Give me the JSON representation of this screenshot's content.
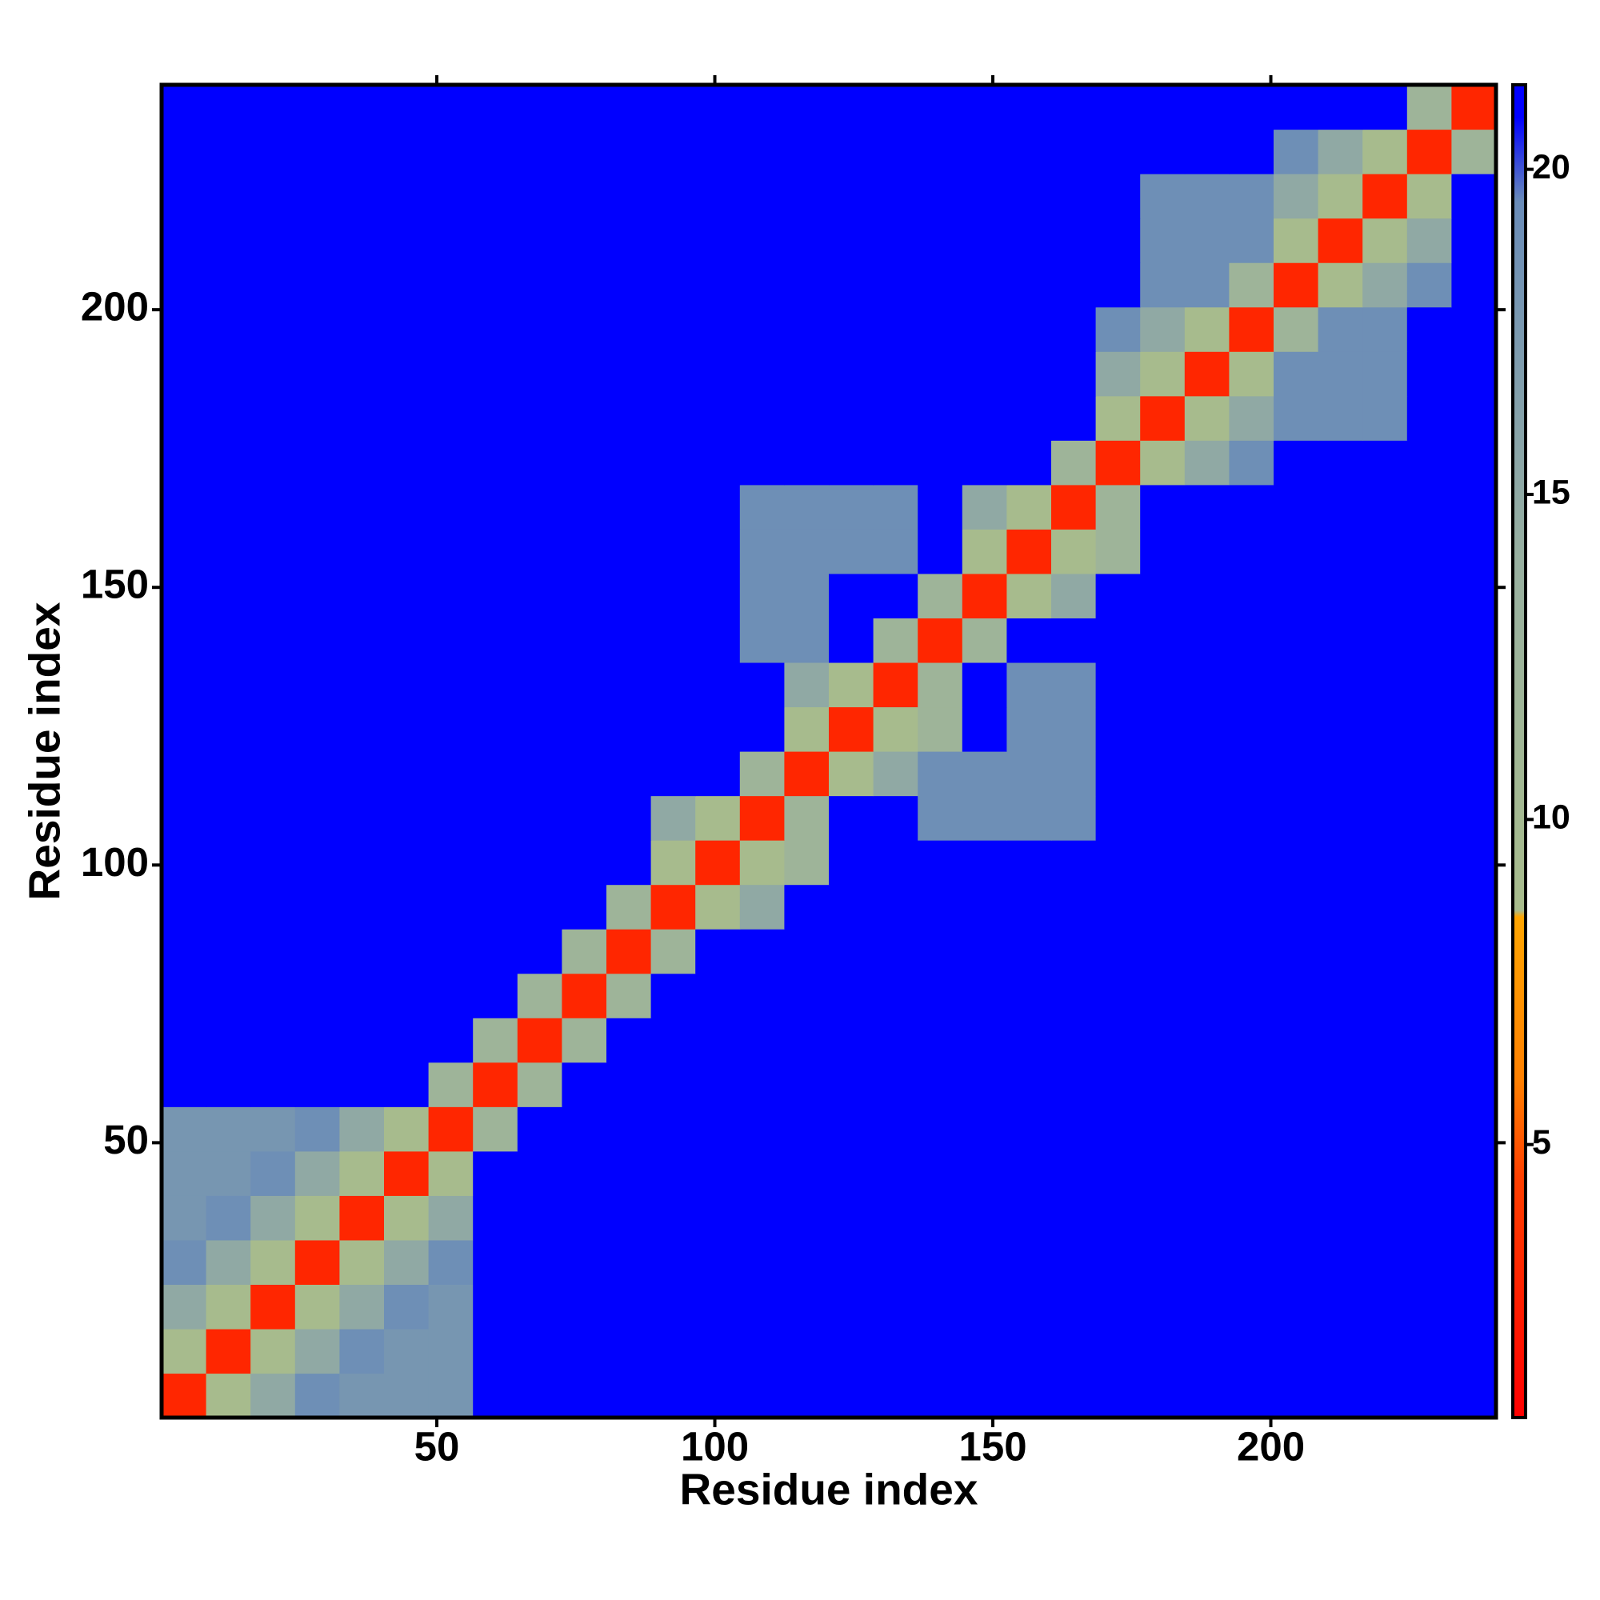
{
  "chart_data": {
    "type": "heatmap",
    "xlabel": "Residue index",
    "ylabel": "Residue index",
    "xbins": [
      0.5,
      8.5,
      16.5,
      24.5,
      32.5,
      40.5,
      48.5,
      56.5,
      64.5,
      72.5,
      80.5,
      88.5,
      96.5,
      104.5,
      112.5,
      120.5,
      128.5,
      136.5,
      144.5,
      152.5,
      160.5,
      168.5,
      176.5,
      184.5,
      192.5,
      200.5,
      208.5,
      216.5,
      224.5,
      232.5,
      240.5
    ],
    "ybins": [
      0.5,
      8.5,
      16.5,
      24.5,
      32.5,
      40.5,
      48.5,
      56.5,
      64.5,
      72.5,
      80.5,
      88.5,
      96.5,
      104.5,
      112.5,
      120.5,
      128.5,
      136.5,
      144.5,
      152.5,
      160.5,
      168.5,
      176.5,
      184.5,
      192.5,
      200.5,
      208.5,
      216.5,
      224.5,
      232.5,
      240.5
    ],
    "values": [
      [
        3,
        9,
        15,
        19,
        18,
        18,
        18,
        21,
        21,
        21,
        21,
        21,
        21,
        21,
        21,
        21,
        21,
        21,
        21,
        21,
        21,
        21,
        21,
        21,
        21,
        21,
        21,
        21,
        21,
        21
      ],
      [
        9,
        3,
        9,
        15,
        19,
        18,
        18,
        21,
        21,
        21,
        21,
        21,
        21,
        21,
        21,
        21,
        21,
        21,
        21,
        21,
        21,
        21,
        21,
        21,
        21,
        21,
        21,
        21,
        21,
        21
      ],
      [
        15,
        9,
        3,
        9,
        15,
        19,
        18,
        21,
        21,
        21,
        21,
        21,
        21,
        21,
        21,
        21,
        21,
        21,
        21,
        21,
        21,
        21,
        21,
        21,
        21,
        21,
        21,
        21,
        21,
        21
      ],
      [
        19,
        15,
        9,
        3,
        9,
        15,
        19,
        21,
        21,
        21,
        21,
        21,
        21,
        21,
        21,
        21,
        21,
        21,
        21,
        21,
        21,
        21,
        21,
        21,
        21,
        21,
        21,
        21,
        21,
        21
      ],
      [
        18,
        19,
        15,
        9,
        3,
        9,
        15,
        21,
        21,
        21,
        21,
        21,
        21,
        21,
        21,
        21,
        21,
        21,
        21,
        21,
        21,
        21,
        21,
        21,
        21,
        21,
        21,
        21,
        21,
        21
      ],
      [
        18,
        18,
        19,
        15,
        9,
        3,
        9,
        21,
        21,
        21,
        21,
        21,
        21,
        21,
        21,
        21,
        21,
        21,
        21,
        21,
        21,
        21,
        21,
        21,
        21,
        21,
        21,
        21,
        21,
        21
      ],
      [
        18,
        18,
        18,
        19,
        15,
        9,
        3,
        12,
        21,
        21,
        21,
        21,
        21,
        21,
        21,
        21,
        21,
        21,
        21,
        21,
        21,
        21,
        21,
        21,
        21,
        21,
        21,
        21,
        21,
        21
      ],
      [
        21,
        21,
        21,
        21,
        21,
        21,
        12,
        3,
        12,
        21,
        21,
        21,
        21,
        21,
        21,
        21,
        21,
        21,
        21,
        21,
        21,
        21,
        21,
        21,
        21,
        21,
        21,
        21,
        21,
        21
      ],
      [
        21,
        21,
        21,
        21,
        21,
        21,
        21,
        12,
        3,
        12,
        21,
        21,
        21,
        21,
        21,
        21,
        21,
        21,
        21,
        21,
        21,
        21,
        21,
        21,
        21,
        21,
        21,
        21,
        21,
        21
      ],
      [
        21,
        21,
        21,
        21,
        21,
        21,
        21,
        21,
        12,
        3,
        12,
        21,
        21,
        21,
        21,
        21,
        21,
        21,
        21,
        21,
        21,
        21,
        21,
        21,
        21,
        21,
        21,
        21,
        21,
        21
      ],
      [
        21,
        21,
        21,
        21,
        21,
        21,
        21,
        21,
        21,
        12,
        3,
        12,
        21,
        21,
        21,
        21,
        21,
        21,
        21,
        21,
        21,
        21,
        21,
        21,
        21,
        21,
        21,
        21,
        21,
        21
      ],
      [
        21,
        21,
        21,
        21,
        21,
        21,
        21,
        21,
        21,
        21,
        12,
        3,
        9,
        15,
        21,
        21,
        21,
        21,
        21,
        21,
        21,
        21,
        21,
        21,
        21,
        21,
        21,
        21,
        21,
        21
      ],
      [
        21,
        21,
        21,
        21,
        21,
        21,
        21,
        21,
        21,
        21,
        21,
        9,
        3,
        9,
        12,
        21,
        21,
        21,
        21,
        21,
        21,
        21,
        21,
        21,
        21,
        21,
        21,
        21,
        21,
        21
      ],
      [
        21,
        21,
        21,
        21,
        21,
        21,
        21,
        21,
        21,
        21,
        21,
        15,
        9,
        3,
        12,
        21,
        21,
        19,
        19,
        19,
        19,
        21,
        21,
        21,
        21,
        21,
        21,
        21,
        21,
        21
      ],
      [
        21,
        21,
        21,
        21,
        21,
        21,
        21,
        21,
        21,
        21,
        21,
        21,
        21,
        12,
        3,
        9,
        15,
        19,
        19,
        19,
        19,
        21,
        21,
        21,
        21,
        21,
        21,
        21,
        21,
        21
      ],
      [
        21,
        21,
        21,
        21,
        21,
        21,
        21,
        21,
        21,
        21,
        21,
        21,
        21,
        21,
        9,
        3,
        9,
        12,
        21,
        19,
        19,
        21,
        21,
        21,
        21,
        21,
        21,
        21,
        21,
        21
      ],
      [
        21,
        21,
        21,
        21,
        21,
        21,
        21,
        21,
        21,
        21,
        21,
        21,
        21,
        21,
        15,
        9,
        3,
        12,
        21,
        19,
        19,
        21,
        21,
        21,
        21,
        21,
        21,
        21,
        21,
        21
      ],
      [
        21,
        21,
        21,
        21,
        21,
        21,
        21,
        21,
        21,
        21,
        21,
        21,
        21,
        19,
        19,
        21,
        12,
        3,
        12,
        21,
        21,
        21,
        21,
        21,
        21,
        21,
        21,
        21,
        21,
        21
      ],
      [
        21,
        21,
        21,
        21,
        21,
        21,
        21,
        21,
        21,
        21,
        21,
        21,
        21,
        19,
        19,
        21,
        21,
        12,
        3,
        9,
        15,
        21,
        21,
        21,
        21,
        21,
        21,
        21,
        21,
        21
      ],
      [
        21,
        21,
        21,
        21,
        21,
        21,
        21,
        21,
        21,
        21,
        21,
        21,
        21,
        19,
        19,
        19,
        19,
        21,
        9,
        3,
        9,
        12,
        21,
        21,
        21,
        21,
        21,
        21,
        21,
        21
      ],
      [
        21,
        21,
        21,
        21,
        21,
        21,
        21,
        21,
        21,
        21,
        21,
        21,
        21,
        19,
        19,
        19,
        19,
        21,
        15,
        9,
        3,
        12,
        21,
        21,
        21,
        21,
        21,
        21,
        21,
        21
      ],
      [
        21,
        21,
        21,
        21,
        21,
        21,
        21,
        21,
        21,
        21,
        21,
        21,
        21,
        21,
        21,
        21,
        21,
        21,
        21,
        21,
        12,
        3,
        9,
        15,
        19,
        21,
        21,
        21,
        21,
        21
      ],
      [
        21,
        21,
        21,
        21,
        21,
        21,
        21,
        21,
        21,
        21,
        21,
        21,
        21,
        21,
        21,
        21,
        21,
        21,
        21,
        21,
        21,
        9,
        3,
        9,
        15,
        19,
        19,
        19,
        21,
        21
      ],
      [
        21,
        21,
        21,
        21,
        21,
        21,
        21,
        21,
        21,
        21,
        21,
        21,
        21,
        21,
        21,
        21,
        21,
        21,
        21,
        21,
        21,
        15,
        9,
        3,
        9,
        19,
        19,
        19,
        21,
        21
      ],
      [
        21,
        21,
        21,
        21,
        21,
        21,
        21,
        21,
        21,
        21,
        21,
        21,
        21,
        21,
        21,
        21,
        21,
        21,
        21,
        21,
        21,
        19,
        15,
        9,
        3,
        12,
        19,
        19,
        21,
        21
      ],
      [
        21,
        21,
        21,
        21,
        21,
        21,
        21,
        21,
        21,
        21,
        21,
        21,
        21,
        21,
        21,
        21,
        21,
        21,
        21,
        21,
        21,
        21,
        19,
        19,
        12,
        3,
        9,
        15,
        19,
        21
      ],
      [
        21,
        21,
        21,
        21,
        21,
        21,
        21,
        21,
        21,
        21,
        21,
        21,
        21,
        21,
        21,
        21,
        21,
        21,
        21,
        21,
        21,
        21,
        19,
        19,
        19,
        9,
        3,
        9,
        15,
        21
      ],
      [
        21,
        21,
        21,
        21,
        21,
        21,
        21,
        21,
        21,
        21,
        21,
        21,
        21,
        21,
        21,
        21,
        21,
        21,
        21,
        21,
        21,
        21,
        19,
        19,
        19,
        15,
        9,
        3,
        9,
        21
      ],
      [
        21,
        21,
        21,
        21,
        21,
        21,
        21,
        21,
        21,
        21,
        21,
        21,
        21,
        21,
        21,
        21,
        21,
        21,
        21,
        21,
        21,
        21,
        21,
        21,
        21,
        19,
        15,
        9,
        3,
        12
      ],
      [
        21,
        21,
        21,
        21,
        21,
        21,
        21,
        21,
        21,
        21,
        21,
        21,
        21,
        21,
        21,
        21,
        21,
        21,
        21,
        21,
        21,
        21,
        21,
        21,
        21,
        21,
        21,
        21,
        12,
        3
      ]
    ],
    "xlim": [
      0.5,
      240.5
    ],
    "ylim": [
      0.5,
      240.5
    ],
    "xticks": [
      50,
      100,
      150,
      200
    ],
    "yticks": [
      50,
      100,
      150,
      200
    ],
    "clim": [
      0.8,
      21.3
    ],
    "cticks": [
      5,
      10,
      15,
      20
    ],
    "colorscale": [
      [
        0.8,
        "#ff0000"
      ],
      [
        4.5,
        "#ff4000"
      ],
      [
        6,
        "#ff8000"
      ],
      [
        8.5,
        "#ffa500"
      ],
      [
        8.6,
        "#a8bc8c"
      ],
      [
        14,
        "#98b0a0"
      ],
      [
        19.5,
        "#6a8cb8"
      ],
      [
        20.8,
        "#0000ff"
      ],
      [
        21.3,
        "#0000ff"
      ]
    ]
  }
}
